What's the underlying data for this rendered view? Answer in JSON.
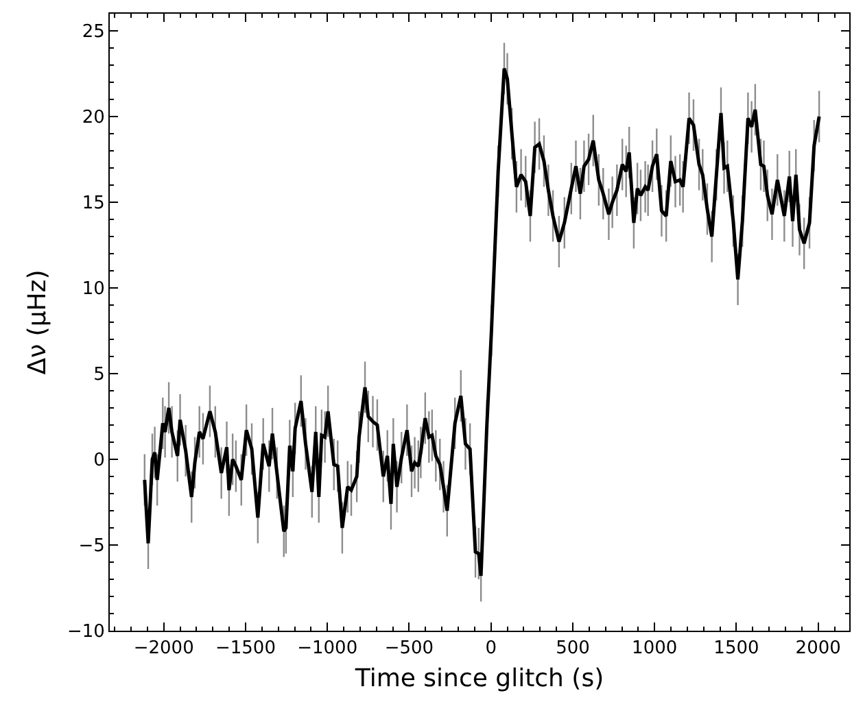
{
  "chart_data": {
    "type": "line",
    "xlabel": "Time since glitch (s)",
    "ylabel": "Δν (μHz)",
    "x": [
      -2117,
      -2095,
      -2070,
      -2055,
      -2040,
      -2006,
      -1992,
      -1969,
      -1950,
      -1916,
      -1900,
      -1866,
      -1830,
      -1810,
      -1782,
      -1760,
      -1718,
      -1685,
      -1648,
      -1615,
      -1601,
      -1579,
      -1559,
      -1526,
      -1495,
      -1462,
      -1425,
      -1392,
      -1356,
      -1336,
      -1308,
      -1266,
      -1253,
      -1230,
      -1211,
      -1197,
      -1161,
      -1133,
      -1094,
      -1071,
      -1052,
      -1035,
      -1015,
      -996,
      -960,
      -937,
      -909,
      -876,
      -854,
      -820,
      -806,
      -770,
      -750,
      -722,
      -695,
      -658,
      -633,
      -611,
      -597,
      -575,
      -547,
      -513,
      -485,
      -466,
      -444,
      -429,
      -402,
      -379,
      -360,
      -337,
      -312,
      -290,
      -268,
      -220,
      -184,
      -156,
      -128,
      -95,
      -75,
      -61,
      -25,
      3,
      44,
      81,
      100,
      128,
      156,
      184,
      212,
      240,
      268,
      295,
      324,
      351,
      379,
      416,
      449,
      491,
      519,
      546,
      569,
      597,
      625,
      659,
      686,
      720,
      742,
      770,
      803,
      826,
      845,
      873,
      895,
      915,
      943,
      960,
      987,
      1013,
      1043,
      1071,
      1099,
      1127,
      1155,
      1174,
      1211,
      1238,
      1272,
      1294,
      1322,
      1350,
      1378,
      1406,
      1425,
      1445,
      1481,
      1509,
      1537,
      1571,
      1593,
      1615,
      1649,
      1668,
      1690,
      1718,
      1751,
      1793,
      1824,
      1844,
      1864,
      1886,
      1914,
      1947,
      1975,
      2006
    ],
    "series": [
      {
        "color": "#000000",
        "values": [
          -1.2,
          -4.9,
          0,
          0.4,
          -1.2,
          2.1,
          1.6,
          3.0,
          1.6,
          0.2,
          2.3,
          0.5,
          -2.2,
          -0.2,
          1.6,
          1.2,
          2.8,
          1.6,
          -0.8,
          0.7,
          -1.8,
          0,
          -0.4,
          -1.2,
          1.7,
          0.6,
          -3.4,
          0.9,
          -0.4,
          1.5,
          -0.8,
          -4.2,
          -4.0,
          0.8,
          -0.7,
          1.8,
          3.4,
          0.9,
          -1.9,
          1.6,
          -2.2,
          1.4,
          1.3,
          2.8,
          -0.3,
          -0.4,
          -4.0,
          -1.6,
          -1.8,
          -1.0,
          1.3,
          4.2,
          2.5,
          2.2,
          2.0,
          -1.0,
          0.2,
          -2.6,
          0.9,
          -1.6,
          0.1,
          1.7,
          -0.7,
          -0.2,
          -0.4,
          0.4,
          2.4,
          1.3,
          1.4,
          0.2,
          -0.3,
          -1.6,
          -3.0,
          2.1,
          3.7,
          0.9,
          0.6,
          -5.4,
          -5.5,
          -6.8,
          2.0,
          7.5,
          16.8,
          22.8,
          22.2,
          19.0,
          15.9,
          16.6,
          16.2,
          14.2,
          18.2,
          18.4,
          17.4,
          15.7,
          14.2,
          12.7,
          13.8,
          15.8,
          17.1,
          15.5,
          17.1,
          17.5,
          18.6,
          16.3,
          15.5,
          14.3,
          15.0,
          15.7,
          17.2,
          16.8,
          17.9,
          13.8,
          15.8,
          15.4,
          15.9,
          15.7,
          17.1,
          17.8,
          14.5,
          14.2,
          17.4,
          16.2,
          16.3,
          15.9,
          19.9,
          19.5,
          17.2,
          16.6,
          14.6,
          13.0,
          16.6,
          20.2,
          17.0,
          17.1,
          13.9,
          10.5,
          13.9,
          19.9,
          19.4,
          20.4,
          17.2,
          17.1,
          15.4,
          14.3,
          16.3,
          14.2,
          16.5,
          13.9,
          16.6,
          13.4,
          12.6,
          13.8,
          18.3,
          20.0
        ],
        "errors": [
          1.5,
          1.5,
          1.5,
          1.5,
          1.5,
          1.5,
          1.5,
          1.5,
          1.5,
          1.5,
          1.5,
          1.5,
          1.5,
          1.5,
          1.5,
          1.5,
          1.5,
          1.5,
          1.5,
          1.5,
          1.5,
          1.5,
          1.5,
          1.5,
          1.5,
          1.5,
          1.5,
          1.5,
          1.5,
          1.5,
          1.5,
          1.5,
          1.5,
          1.5,
          1.5,
          1.5,
          1.5,
          1.5,
          1.5,
          1.5,
          1.5,
          1.5,
          1.5,
          1.5,
          1.5,
          1.5,
          1.5,
          1.5,
          1.5,
          1.5,
          1.5,
          1.5,
          1.5,
          1.5,
          1.5,
          1.5,
          1.5,
          1.5,
          1.5,
          1.5,
          1.5,
          1.5,
          1.5,
          1.5,
          1.5,
          1.5,
          1.5,
          1.5,
          1.5,
          1.5,
          1.5,
          1.5,
          1.5,
          1.5,
          1.5,
          1.5,
          1.5,
          1.5,
          1.5,
          1.5,
          1.5,
          1.5,
          1.5,
          1.5,
          1.5,
          1.5,
          1.5,
          1.5,
          1.5,
          1.5,
          1.5,
          1.5,
          1.5,
          1.5,
          1.5,
          1.5,
          1.5,
          1.5,
          1.5,
          1.5,
          1.5,
          1.5,
          1.5,
          1.5,
          1.5,
          1.5,
          1.5,
          1.5,
          1.5,
          1.5,
          1.5,
          1.5,
          1.5,
          1.5,
          1.5,
          1.5,
          1.5,
          1.5,
          1.5,
          1.5,
          1.5,
          1.5,
          1.5,
          1.5,
          1.5,
          1.5,
          1.5,
          1.5,
          1.5,
          1.5,
          1.5,
          1.5,
          1.5,
          1.5,
          1.5,
          1.5,
          1.5,
          1.5,
          1.5,
          1.5,
          1.5,
          1.5,
          1.5,
          1.5,
          1.5,
          1.5,
          1.5,
          1.5,
          1.5,
          1.5,
          1.5,
          1.5,
          1.5,
          1.5
        ]
      }
    ],
    "xlim": [
      -2330,
      2190
    ],
    "ylim": [
      -10,
      26
    ],
    "xticks": [
      {
        "value": -2000,
        "label": "−2000"
      },
      {
        "value": -1500,
        "label": "−1500"
      },
      {
        "value": -1000,
        "label": "−1000"
      },
      {
        "value": -500,
        "label": "−500"
      },
      0,
      500,
      1000,
      1500,
      2000
    ],
    "yticks": [
      {
        "value": -10,
        "label": "−10"
      },
      {
        "value": -5,
        "label": "−5"
      },
      0,
      5,
      10,
      15,
      20,
      25
    ],
    "grid": false,
    "marker": "none",
    "line_style": "solid"
  }
}
